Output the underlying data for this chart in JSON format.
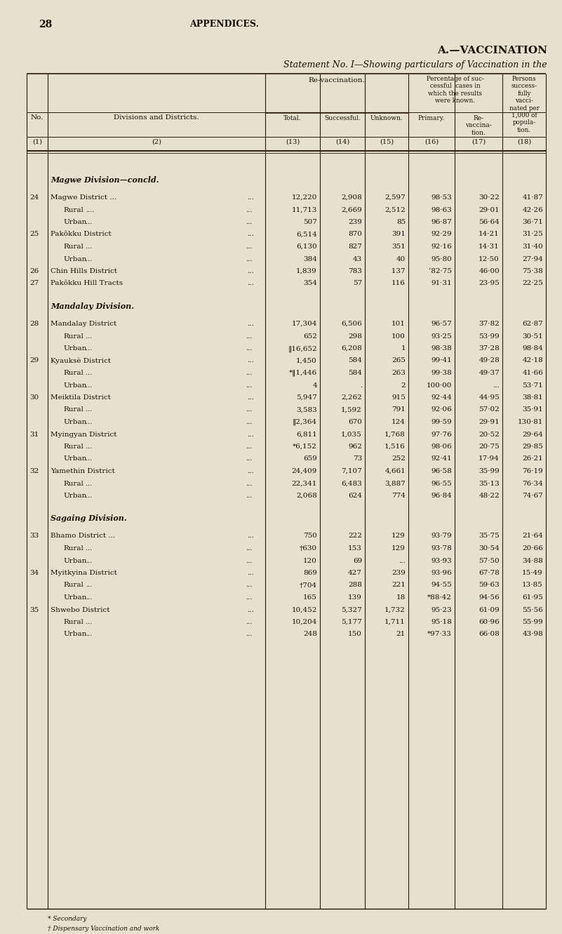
{
  "page_number": "28",
  "page_header": "APPENDICES.",
  "title1": "A.—VACCINATION",
  "title2": "Statement No. I—Showing particulars of Vaccination in the",
  "bg_color": "#e8e0ce",
  "text_color": "#1a1008",
  "col_headers": {
    "revac_label": "Re-vaccination.",
    "pct_label": "Percentage of suc-\ncessful  cases in\nwhich the results\nwere known.",
    "persons_label": "Persons\nsuccess-\nfully\nvacci-\nnated per\n1,000 of\npopula-\ntion.",
    "total": "Total.",
    "successful": "Successful.",
    "unknown": "Unknown.",
    "primary": "Primary.",
    "revac": "Re-\nvaccina-\ntion.",
    "no_label": "No.",
    "div_label": "Divisions and Districts.",
    "col_nums": [
      "(1)",
      "(2)",
      "(13)",
      "(14)",
      "(15)",
      "(16)",
      "(17)",
      "(18)"
    ]
  },
  "sections": [
    {
      "section_title": "Magwe Division—concld.",
      "section_style": "italic",
      "rows": [
        {
          "no": "24",
          "name": "Magwe District ...",
          "indent": false,
          "extra_dots": "...",
          "total": "12,220",
          "successful": "2,908",
          "unknown": "2,597",
          "primary": "98·53",
          "revac": "30·22",
          "persons": "41·87"
        },
        {
          "no": "",
          "name": "Rural",
          "indent": true,
          "extra_dots": "....  ...",
          "total": "11,713",
          "successful": "2,669",
          "unknown": "2,512",
          "primary": "98·63",
          "revac": "29·01",
          "persons": "42·26"
        },
        {
          "no": "",
          "name": "Urban",
          "indent": true,
          "extra_dots": "...  ...",
          "total": "507",
          "successful": "239",
          "unknown": "85",
          "primary": "96·87",
          "revac": "56·64",
          "persons": "36·71"
        },
        {
          "no": "25",
          "name": "Pakôkku District",
          "indent": false,
          "extra_dots": "...",
          "total": "6,514",
          "successful": "870",
          "unknown": "391",
          "primary": "92·29",
          "revac": "14·21",
          "persons": "31·25"
        },
        {
          "no": "",
          "name": "Rural",
          "indent": true,
          "extra_dots": "...  ...",
          "total": "6,130",
          "successful": "827",
          "unknown": "351",
          "primary": "92·16",
          "revac": "14·31",
          "persons": "31·40"
        },
        {
          "no": "",
          "name": "Urban",
          "indent": true,
          "extra_dots": "...  ...",
          "total": "384",
          "successful": "43",
          "unknown": "40",
          "primary": "95·80",
          "revac": "12·50",
          "persons": "27·94"
        },
        {
          "no": "26",
          "name": "Chin Hills District",
          "indent": false,
          "extra_dots": "...",
          "total": "1,839",
          "successful": "783",
          "unknown": "   137",
          "primary": "‘82·75",
          "revac": "46·00",
          "persons": "75·38"
        },
        {
          "no": "27",
          "name": "Pakôkku Hill Tracts",
          "indent": false,
          "extra_dots": "...",
          "total": "354",
          "successful": "57",
          "unknown": "116",
          "primary": "91·31",
          "revac": "23·95",
          "persons": "22·25"
        }
      ]
    },
    {
      "section_title": "Mandalay Division.",
      "section_style": "italic",
      "rows": [
        {
          "no": "28",
          "name": "Mandalay District",
          "indent": false,
          "extra_dots": "...",
          "total": "17,304",
          "successful": "6,506",
          "unknown": "101",
          "primary": "96·57",
          "revac": "37·82",
          "persons": "62·87"
        },
        {
          "no": "",
          "name": "Rural",
          "indent": true,
          "extra_dots": "...  ...",
          "total": "652",
          "successful": "298",
          "unknown": "100",
          "primary": "93·25",
          "revac": "53·99",
          "persons": "30·51"
        },
        {
          "no": "",
          "name": "Urban",
          "indent": true,
          "extra_dots": "...  ...",
          "total": "‖16,652",
          "successful": "6,208",
          "unknown": "1",
          "primary": "98·38",
          "revac": "37·28",
          "persons": "98·84"
        },
        {
          "no": "29",
          "name": "Kyauksè District",
          "indent": false,
          "extra_dots": "...",
          "total": "1,450",
          "successful": "584",
          "unknown": "265",
          "primary": "99·41",
          "revac": "49·28",
          "persons": "42·18"
        },
        {
          "no": "",
          "name": "Rural",
          "indent": true,
          "extra_dots": "...  ...",
          "total": "*‖1,446",
          "successful": "584",
          "unknown": "263",
          "primary": "99·38",
          "revac": "49·37",
          "persons": "41·66"
        },
        {
          "no": "",
          "name": "Urban",
          "indent": true,
          "extra_dots": "...  ...",
          "total": "4",
          "successful": ".",
          "unknown": "2",
          "primary": "100·00",
          "revac": "...",
          "persons": "53·71"
        },
        {
          "no": "30",
          "name": "Meiktila District",
          "indent": false,
          "extra_dots": "...",
          "total": "5,947",
          "successful": "2,262",
          "unknown": "915",
          "primary": "92·44",
          "revac": "44·95",
          "persons": "38·81"
        },
        {
          "no": "",
          "name": "Rural",
          "indent": true,
          "extra_dots": "...  ...",
          "total": "3,583",
          "successful": "1,592",
          "unknown": "791",
          "primary": "92·06",
          "revac": "57·02",
          "persons": "35·91"
        },
        {
          "no": "",
          "name": "Urban",
          "indent": true,
          "extra_dots": "...  ...",
          "total": "‖2,364",
          "successful": "670",
          "unknown": "124",
          "primary": "99·59",
          "revac": "29·91",
          "persons": "130·81"
        },
        {
          "no": "31",
          "name": "Myingyan District",
          "indent": false,
          "extra_dots": "...",
          "total": "6,811",
          "successful": "1,035",
          "unknown": "1,768",
          "primary": "97·76",
          "revac": "20·52",
          "persons": "29·64"
        },
        {
          "no": "",
          "name": "Rural",
          "indent": true,
          "extra_dots": "...  ...",
          "total": "*6,152",
          "successful": "962",
          "unknown": "1,516",
          "primary": "98·06",
          "revac": "20·75",
          "persons": "29·85"
        },
        {
          "no": "",
          "name": "Urban",
          "indent": true,
          "extra_dots": "...  ...",
          "total": "659",
          "successful": "73",
          "unknown": "252",
          "primary": "92·41",
          "revac": "17·94",
          "persons": "26·21"
        },
        {
          "no": "32",
          "name": "Yamethin District",
          "indent": false,
          "extra_dots": "...",
          "total": "24,409",
          "successful": "7,107",
          "unknown": "4,661",
          "primary": "96·58",
          "revac": "35·99",
          "persons": "76·19"
        },
        {
          "no": "",
          "name": "Rural",
          "indent": true,
          "extra_dots": "...  ...",
          "total": "22,341",
          "successful": "6,483",
          "unknown": "3,887",
          "primary": "96·55",
          "revac": "35·13",
          "persons": "76·34"
        },
        {
          "no": "",
          "name": "Urban",
          "indent": true,
          "extra_dots": "...  ...",
          "total": "2,068",
          "successful": "624",
          "unknown": "774",
          "primary": "96·84",
          "revac": "48·22",
          "persons": "74·67"
        }
      ]
    },
    {
      "section_title": "Sagaing Division.",
      "section_style": "italic",
      "rows": [
        {
          "no": "33",
          "name": "Bhamo District ...",
          "indent": false,
          "extra_dots": "...",
          "total": "750",
          "successful": "222",
          "unknown": "129",
          "primary": "93·79",
          "revac": "35·75",
          "persons": "21·64"
        },
        {
          "no": "",
          "name": "Rural",
          "indent": true,
          "extra_dots": "...  ...",
          "total": "†630",
          "successful": "153",
          "unknown": "129",
          "primary": "93·78",
          "revac": "30·54",
          "persons": "20·66"
        },
        {
          "no": "",
          "name": "Urban",
          "indent": true,
          "extra_dots": "...",
          "total": "120",
          "successful": "69",
          "unknown": "...",
          "primary": "93·93",
          "revac": "57·50",
          "persons": "34·88"
        },
        {
          "no": "34",
          "name": "Myitkyina District",
          "indent": false,
          "extra_dots": "...",
          "total": "869",
          "successful": "427",
          "unknown": "239",
          "primary": "93·96",
          "revac": "67·78",
          "persons": "15·49"
        },
        {
          "no": "",
          "name": "Rural",
          "indent": true,
          "extra_dots": "...",
          "total": "†704",
          "successful": "288",
          "unknown": "221",
          "primary": "94·55",
          "revac": "59·63",
          "persons": "13·85"
        },
        {
          "no": "",
          "name": "Urban",
          "indent": true,
          "extra_dots": "...",
          "total": "165",
          "successful": "139",
          "unknown": "18",
          "primary": "*88·42",
          "revac": "94·56",
          "persons": "61·95"
        },
        {
          "no": "35",
          "name": "Shwebo District",
          "indent": false,
          "extra_dots": "...",
          "total": "10,452",
          "successful": "5,327",
          "unknown": "1,732",
          "primary": "95·23",
          "revac": "61·09",
          "persons": "55·56"
        },
        {
          "no": "",
          "name": "Rural",
          "indent": true,
          "extra_dots": "...  ...",
          "total": "10,204",
          "successful": "5,177",
          "unknown": "1,711",
          "primary": "95·18",
          "revac": "60·96",
          "persons": "55·99"
        },
        {
          "no": "",
          "name": "Urban",
          "indent": true,
          "extra_dots": "...",
          "total": "248",
          "successful": "150",
          "unknown": "21",
          "primary": "*97·33",
          "revac": "66·08",
          "persons": "43·98"
        }
      ]
    }
  ],
  "footnotes": [
    "* Secondary",
    "† Dispensary Vaccination and work"
  ]
}
